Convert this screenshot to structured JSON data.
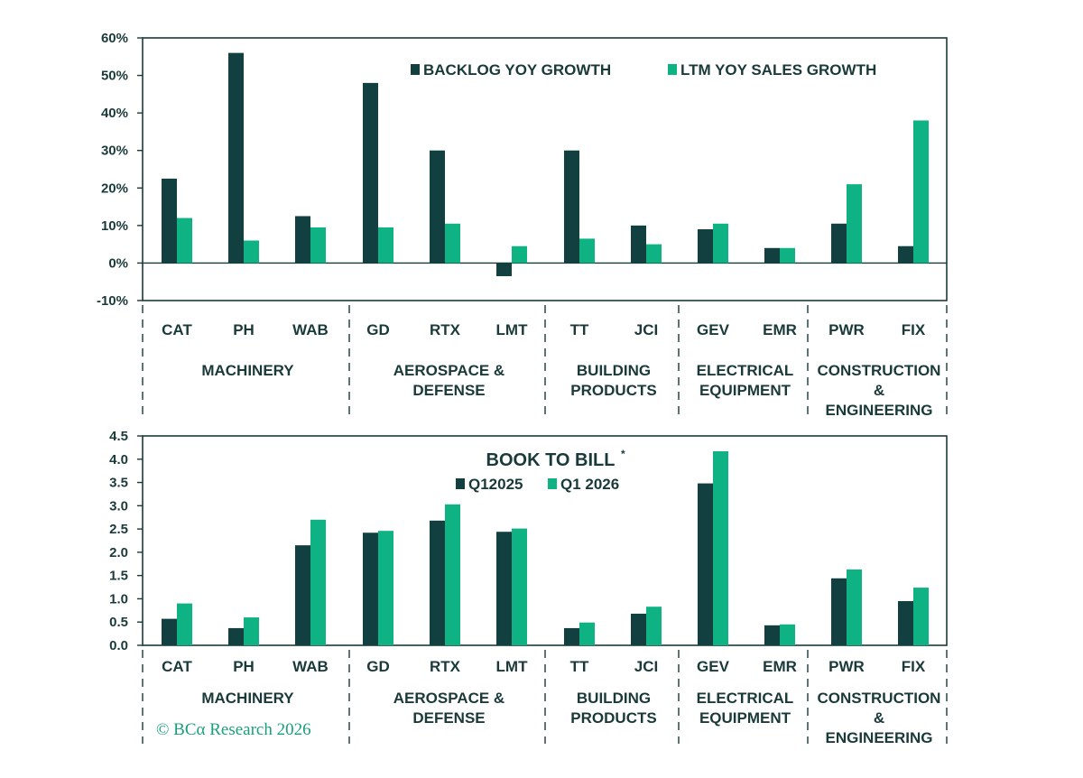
{
  "colors": {
    "dark": "#123f3f",
    "teal": "#0fb283",
    "axis": "#1a3a3a",
    "credit": "#1aa079"
  },
  "credit": "© BCα Research 2026",
  "chart_data": [
    {
      "type": "bar",
      "title": "",
      "categories": [
        "CAT",
        "PH",
        "WAB",
        "GD",
        "RTX",
        "LMT",
        "TT",
        "JCI",
        "GEV",
        "EMR",
        "PWR",
        "FIX"
      ],
      "groups": [
        {
          "label_lines": [
            "MACHINERY"
          ],
          "categories": [
            "CAT",
            "PH",
            "WAB"
          ]
        },
        {
          "label_lines": [
            "AEROSPACE &",
            "DEFENSE"
          ],
          "categories": [
            "GD",
            "RTX",
            "LMT"
          ]
        },
        {
          "label_lines": [
            "BUILDING",
            "PRODUCTS"
          ],
          "categories": [
            "TT",
            "JCI"
          ]
        },
        {
          "label_lines": [
            "ELECTRICAL",
            "EQUIPMENT"
          ],
          "categories": [
            "GEV",
            "EMR"
          ]
        },
        {
          "label_lines": [
            "CONSTRUCTION",
            "&",
            "ENGINEERING"
          ],
          "categories": [
            "PWR",
            "FIX"
          ]
        }
      ],
      "series": [
        {
          "name": "BACKLOG YOY GROWTH",
          "color": "#123f3f",
          "values": [
            22.5,
            56,
            12.5,
            48,
            30,
            -3.5,
            30,
            10,
            9,
            4,
            10.5,
            4.5
          ]
        },
        {
          "name": "LTM YOY SALES GROWTH",
          "color": "#0fb283",
          "values": [
            12,
            6,
            9.5,
            9.5,
            10.5,
            4.5,
            6.5,
            5,
            10.5,
            4,
            21,
            38
          ]
        }
      ],
      "ylim": [
        -10,
        60
      ],
      "yticks": [
        -10,
        0,
        10,
        20,
        30,
        40,
        50,
        60
      ],
      "ytick_labels": [
        "-10%",
        "0%",
        "10%",
        "20%",
        "30%",
        "40%",
        "50%",
        "60%"
      ],
      "legend": "top-right"
    },
    {
      "type": "bar",
      "title": "BOOK TO BILL",
      "title_superscript": "*",
      "categories": [
        "CAT",
        "PH",
        "WAB",
        "GD",
        "RTX",
        "LMT",
        "TT",
        "JCI",
        "GEV",
        "EMR",
        "PWR",
        "FIX"
      ],
      "groups": [
        {
          "label_lines": [
            "MACHINERY"
          ],
          "categories": [
            "CAT",
            "PH",
            "WAB"
          ]
        },
        {
          "label_lines": [
            "AEROSPACE &",
            "DEFENSE"
          ],
          "categories": [
            "GD",
            "RTX",
            "LMT"
          ]
        },
        {
          "label_lines": [
            "BUILDING",
            "PRODUCTS"
          ],
          "categories": [
            "TT",
            "JCI"
          ]
        },
        {
          "label_lines": [
            "ELECTRICAL",
            "EQUIPMENT"
          ],
          "categories": [
            "GEV",
            "EMR"
          ]
        },
        {
          "label_lines": [
            "CONSTRUCTION",
            "&",
            "ENGINEERING"
          ],
          "categories": [
            "PWR",
            "FIX"
          ]
        }
      ],
      "series": [
        {
          "name": "Q12025",
          "color": "#123f3f",
          "values": [
            0.57,
            0.37,
            2.15,
            2.42,
            2.68,
            2.44,
            0.37,
            0.68,
            3.48,
            0.43,
            1.44,
            0.95
          ]
        },
        {
          "name": "Q1 2026",
          "color": "#0fb283",
          "values": [
            0.9,
            0.6,
            2.7,
            2.46,
            3.03,
            2.51,
            0.49,
            0.83,
            4.17,
            0.45,
            1.63,
            1.24
          ]
        }
      ],
      "ylim": [
        0,
        4.5
      ],
      "yticks": [
        0,
        0.5,
        1,
        1.5,
        2,
        2.5,
        3,
        3.5,
        4,
        4.5
      ],
      "ytick_labels": [
        "0.0",
        "0.5",
        "1.0",
        "1.5",
        "2.0",
        "2.5",
        "3.0",
        "3.5",
        "4.0",
        "4.5"
      ],
      "legend": "top-center"
    }
  ]
}
